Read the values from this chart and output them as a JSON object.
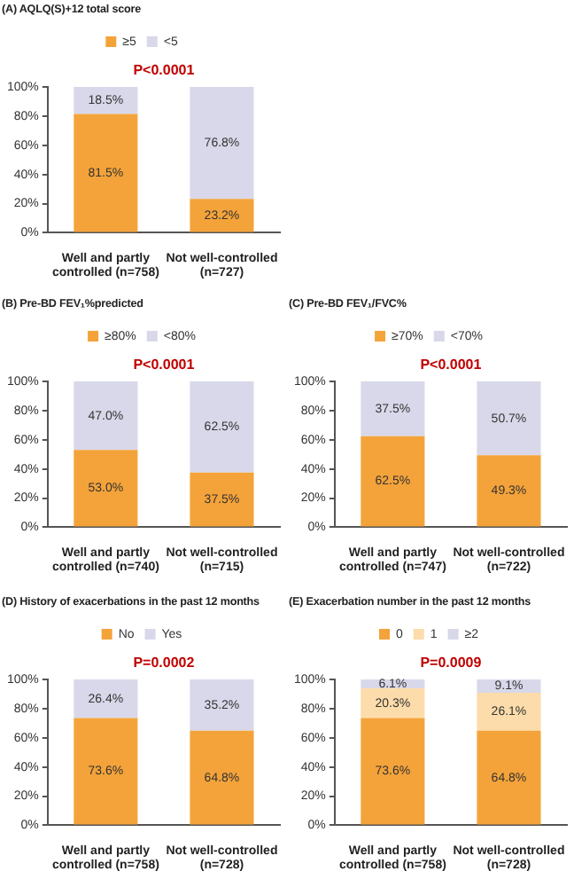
{
  "chart_data": [
    {
      "type": "bar",
      "title": "(A)  AQLQ(S)+12 total score",
      "annotations": [
        "P<0.0001"
      ],
      "categories": [
        "Well and partly controlled (n=758)",
        "Not well-controlled (n=727)"
      ],
      "stacked": true,
      "legend": "top",
      "grid": false,
      "ylim": [
        0,
        100
      ],
      "yticks": [
        {
          "value": 0,
          "label": "0%"
        },
        {
          "value": 20,
          "label": "20%"
        },
        {
          "value": 40,
          "label": "40%"
        },
        {
          "value": 60,
          "label": "60%"
        },
        {
          "value": 80,
          "label": "80%"
        },
        {
          "value": 100,
          "label": "100%"
        }
      ],
      "series": [
        {
          "name": "≥5",
          "color": "#f4a33a",
          "values": [
            81.5,
            23.2
          ],
          "value_labels": [
            "81.5%",
            "23.2%"
          ]
        },
        {
          "name": "<5",
          "color": "#d8d8ea",
          "values": [
            18.5,
            76.8
          ],
          "value_labels": [
            "18.5%",
            "76.8%"
          ]
        }
      ]
    },
    {
      "type": "bar",
      "title": "(B)  Pre-BD FEV₁%predicted",
      "annotations": [
        "P<0.0001"
      ],
      "categories": [
        "Well and partly controlled (n=740)",
        "Not well-controlled (n=715)"
      ],
      "stacked": true,
      "legend": "top",
      "grid": false,
      "ylim": [
        0,
        100
      ],
      "yticks": [
        {
          "value": 0,
          "label": "0%"
        },
        {
          "value": 20,
          "label": "20%"
        },
        {
          "value": 40,
          "label": "40%"
        },
        {
          "value": 60,
          "label": "60%"
        },
        {
          "value": 80,
          "label": "80%"
        },
        {
          "value": 100,
          "label": "100%"
        }
      ],
      "series": [
        {
          "name": "≥80%",
          "color": "#f4a33a",
          "values": [
            53.0,
            37.5
          ],
          "value_labels": [
            "53.0%",
            "37.5%"
          ]
        },
        {
          "name": "<80%",
          "color": "#d8d8ea",
          "values": [
            47.0,
            62.5
          ],
          "value_labels": [
            "47.0%",
            "62.5%"
          ]
        }
      ]
    },
    {
      "type": "bar",
      "title": "(C)  Pre-BD FEV₁/FVC%",
      "annotations": [
        "P<0.0001"
      ],
      "categories": [
        "Well and partly controlled (n=747)",
        "Not well-controlled (n=722)"
      ],
      "stacked": true,
      "legend": "top",
      "grid": false,
      "ylim": [
        0,
        100
      ],
      "yticks": [
        {
          "value": 0,
          "label": "0%"
        },
        {
          "value": 20,
          "label": "20%"
        },
        {
          "value": 40,
          "label": "40%"
        },
        {
          "value": 60,
          "label": "60%"
        },
        {
          "value": 80,
          "label": "80%"
        },
        {
          "value": 100,
          "label": "100%"
        }
      ],
      "series": [
        {
          "name": "≥70%",
          "color": "#f4a33a",
          "values": [
            62.5,
            49.3
          ],
          "value_labels": [
            "62.5%",
            "49.3%"
          ]
        },
        {
          "name": "<70%",
          "color": "#d8d8ea",
          "values": [
            37.5,
            50.7
          ],
          "value_labels": [
            "37.5%",
            "50.7%"
          ]
        }
      ]
    },
    {
      "type": "bar",
      "title": "(D) History of exacerbations in the past 12 months",
      "annotations": [
        "P=0.0002"
      ],
      "categories": [
        "Well and partly controlled (n=758)",
        "Not well-controlled (n=728)"
      ],
      "stacked": true,
      "legend": "top",
      "grid": false,
      "ylim": [
        0,
        100
      ],
      "yticks": [
        {
          "value": 0,
          "label": "0%"
        },
        {
          "value": 20,
          "label": "20%"
        },
        {
          "value": 40,
          "label": "40%"
        },
        {
          "value": 60,
          "label": "60%"
        },
        {
          "value": 80,
          "label": "80%"
        },
        {
          "value": 100,
          "label": "100%"
        }
      ],
      "series": [
        {
          "name": "No",
          "color": "#f4a33a",
          "values": [
            73.6,
            64.8
          ],
          "value_labels": [
            "73.6%",
            "64.8%"
          ]
        },
        {
          "name": "Yes",
          "color": "#d8d8ea",
          "values": [
            26.4,
            35.2
          ],
          "value_labels": [
            "26.4%",
            "35.2%"
          ]
        }
      ]
    },
    {
      "type": "bar",
      "title": "(E) Exacerbation number in the past 12 months",
      "annotations": [
        "P=0.0009"
      ],
      "categories": [
        "Well and partly controlled (n=758)",
        "Not well-controlled (n=728)"
      ],
      "stacked": true,
      "legend": "top",
      "grid": false,
      "ylim": [
        0,
        100
      ],
      "yticks": [
        {
          "value": 0,
          "label": "0%"
        },
        {
          "value": 20,
          "label": "20%"
        },
        {
          "value": 40,
          "label": "40%"
        },
        {
          "value": 60,
          "label": "60%"
        },
        {
          "value": 80,
          "label": "80%"
        },
        {
          "value": 100,
          "label": "100%"
        }
      ],
      "series": [
        {
          "name": "0",
          "color": "#f4a33a",
          "values": [
            73.6,
            64.8
          ],
          "value_labels": [
            "73.6%",
            "64.8%"
          ]
        },
        {
          "name": "1",
          "color": "#fcdcaa",
          "values": [
            20.3,
            26.1
          ],
          "value_labels": [
            "20.3%",
            "26.1%"
          ]
        },
        {
          "name": "≥2",
          "color": "#d8d8ea",
          "values": [
            6.1,
            9.1
          ],
          "value_labels": [
            "6.1%",
            "9.1%"
          ]
        }
      ]
    }
  ]
}
